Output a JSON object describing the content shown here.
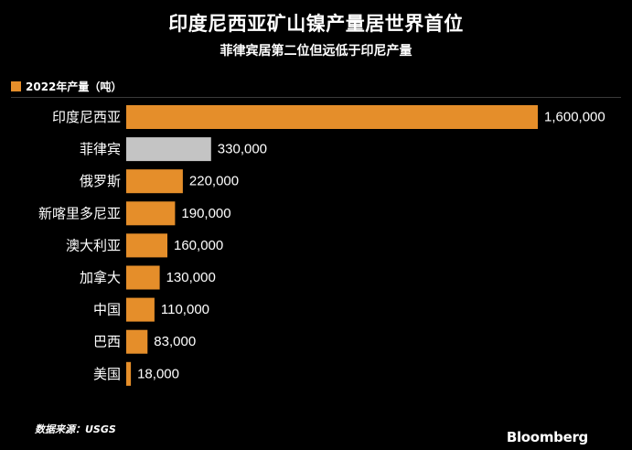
{
  "title": "印度尼西亚矿山镍产量居世界首位",
  "subtitle": "菲律宾居第二位但远低于印尼产量",
  "legend_label": "2022年产量（吨）",
  "source": "数据来源：USGS",
  "brand": "Bloomberg",
  "colors": {
    "primary": "#e58e2a",
    "highlight": "#c4c4c4",
    "background": "#000000",
    "text": "#ffffff"
  },
  "chart_data": {
    "type": "bar",
    "orientation": "horizontal",
    "categories": [
      "印度尼西亚",
      "菲律宾",
      "俄罗斯",
      "新喀里多尼亚",
      "澳大利亚",
      "加拿大",
      "中国",
      "巴西",
      "美国"
    ],
    "values": [
      1600000,
      330000,
      220000,
      190000,
      160000,
      130000,
      110000,
      83000,
      18000
    ],
    "value_labels": [
      "1,600,000",
      "330,000",
      "220,000",
      "190,000",
      "160,000",
      "130,000",
      "110,000",
      "83,000",
      "18,000"
    ],
    "highlighted_category": "菲律宾",
    "series": [
      {
        "name": "2022年产量（吨）",
        "values": [
          1600000,
          330000,
          220000,
          190000,
          160000,
          130000,
          110000,
          83000,
          18000
        ]
      }
    ],
    "xlim": [
      0,
      1600000
    ],
    "grid": false,
    "legend_position": "top-left"
  }
}
